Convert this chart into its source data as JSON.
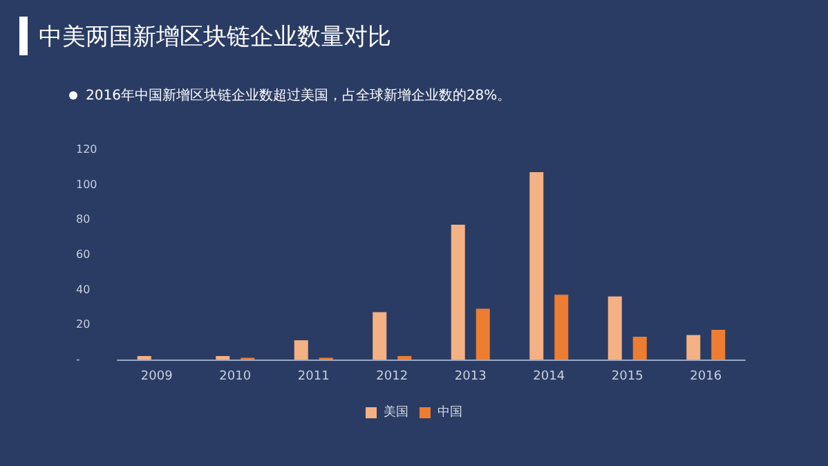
{
  "chart_data": {
    "type": "bar",
    "title": "中美两国新增区块链企业数量对比",
    "subtitle": "2016年中国新增区块链企业数超过美国，占全球新增企业数的28%。",
    "categories": [
      "2009",
      "2010",
      "2011",
      "2012",
      "2013",
      "2014",
      "2015",
      "2016"
    ],
    "series": [
      {
        "name": "美国",
        "color": "#f4b183",
        "values": [
          2,
          2,
          11,
          27,
          77,
          107,
          36,
          14
        ]
      },
      {
        "name": "中国",
        "color": "#ed7d31",
        "values": [
          0,
          1,
          1,
          2,
          29,
          37,
          13,
          17
        ]
      }
    ],
    "ylim": [
      0,
      120
    ],
    "yticks": [
      {
        "value": 0,
        "label": "-"
      },
      20,
      40,
      60,
      80,
      100,
      120
    ],
    "grid": false,
    "legend": "bottom"
  }
}
